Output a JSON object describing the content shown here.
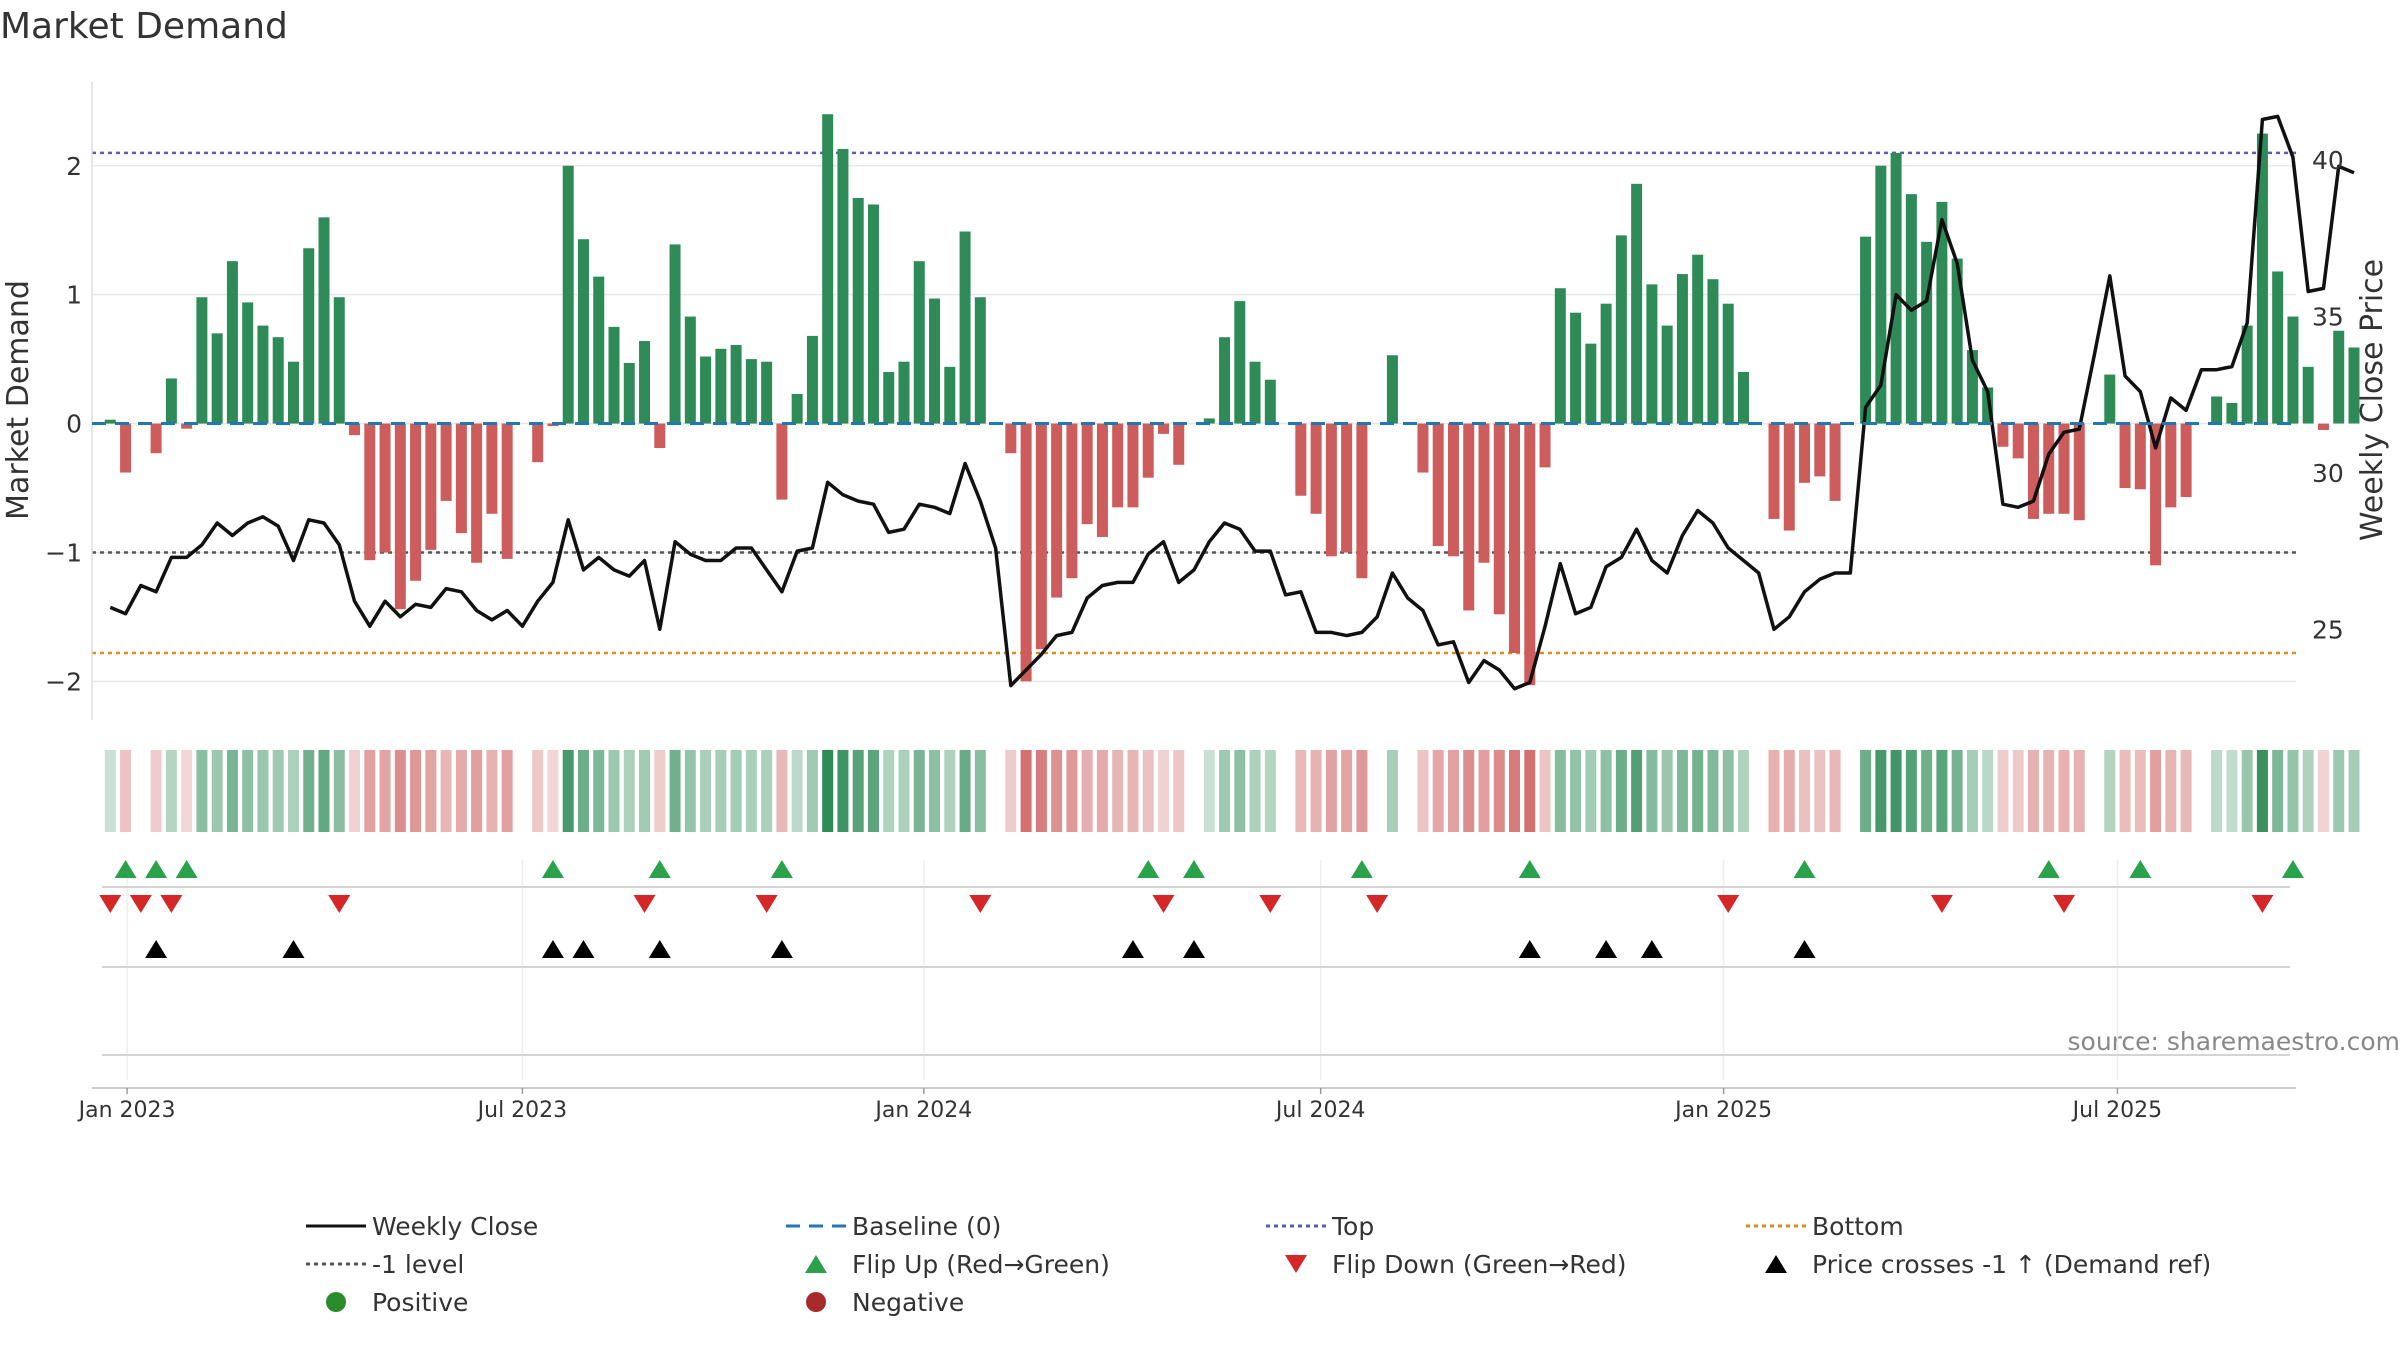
{
  "chart_data": {
    "type": "bar",
    "title": "Market Demand",
    "ylabel": "Market Demand",
    "y2label": "Weekly Close Price",
    "ylim": [
      -2.3,
      2.65
    ],
    "y_ticks": [
      -2,
      -1,
      0,
      1,
      2
    ],
    "y_tick_labels": [
      "−2",
      "−1",
      "0",
      "1",
      "2"
    ],
    "y2lim": [
      22.1,
      42.5
    ],
    "y2_ticks": [
      25,
      30,
      35,
      40
    ],
    "y2_tick_labels": [
      "25",
      "30",
      "35",
      "40"
    ],
    "x_range_weeks": [
      -1.2,
      143.2
    ],
    "x_ticks": [
      {
        "label": "Jan 2023",
        "week": 1.1
      },
      {
        "label": "Jul 2023",
        "week": 27
      },
      {
        "label": "Jan 2024",
        "week": 53.3
      },
      {
        "label": "Jul 2024",
        "week": 79.3
      },
      {
        "label": "Jan 2025",
        "week": 105.7
      },
      {
        "label": "Jul 2025",
        "week": 131.5
      }
    ],
    "reference_lines": {
      "top": 2.1,
      "bottom": -1.78,
      "minus_one": -1,
      "baseline": 0
    },
    "series": [
      {
        "name": "Market Demand",
        "values": [
          0.03,
          -0.38,
          0,
          -0.23,
          0.35,
          -0.04,
          0.98,
          0.7,
          1.26,
          0.94,
          0.76,
          0.67,
          0.48,
          1.36,
          1.6,
          0.98,
          -0.09,
          -1.06,
          -1.0,
          -1.44,
          -1.22,
          -0.98,
          -0.6,
          -0.85,
          -1.08,
          -0.7,
          -1.05,
          0,
          -0.3,
          -0.02,
          2.0,
          1.43,
          1.14,
          0.75,
          0.47,
          0.64,
          -0.19,
          1.39,
          0.83,
          0.52,
          0.58,
          0.61,
          0.5,
          0.48,
          -0.59,
          0.23,
          0.68,
          2.4,
          2.13,
          1.75,
          1.7,
          0.4,
          0.48,
          1.26,
          0.97,
          0.44,
          1.49,
          0.98,
          0.0,
          -0.23,
          -2.0,
          -1.75,
          -1.35,
          -1.2,
          -0.78,
          -0.88,
          -0.65,
          -0.65,
          -0.42,
          -0.08,
          -0.32,
          0,
          0.04,
          0.67,
          0.95,
          0.48,
          0.34,
          0,
          -0.56,
          -0.7,
          -1.03,
          -1.0,
          -1.2,
          0,
          0.53,
          0,
          -0.38,
          -0.95,
          -1.03,
          -1.45,
          -1.08,
          -1.48,
          -1.78,
          -2.03,
          -0.34,
          1.05,
          0.86,
          0.62,
          0.93,
          1.46,
          1.86,
          1.08,
          0.76,
          1.16,
          1.31,
          1.12,
          0.93,
          0.4,
          0,
          -0.74,
          -0.83,
          -0.46,
          -0.41,
          -0.6,
          0,
          1.45,
          2.0,
          2.1,
          1.78,
          1.41,
          1.72,
          1.28,
          0.57,
          0.28,
          -0.18,
          -0.27,
          -0.74,
          -0.7,
          -0.7,
          -0.75,
          0,
          0.38,
          -0.5,
          -0.51,
          -1.1,
          -0.65,
          -0.57,
          0,
          0.21,
          0.16,
          0.76,
          2.25,
          1.18,
          0.83,
          0.44,
          -0.05,
          0.72,
          0.59
        ]
      },
      {
        "name": "Weekly Close",
        "values": [
          25.7,
          25.5,
          26.4,
          26.2,
          27.3,
          27.3,
          27.7,
          28.4,
          28.0,
          28.4,
          28.6,
          28.3,
          27.2,
          28.5,
          28.4,
          27.7,
          25.9,
          25.1,
          25.9,
          25.4,
          25.8,
          25.7,
          26.3,
          26.2,
          25.6,
          25.3,
          25.6,
          25.1,
          25.9,
          26.5,
          28.5,
          26.9,
          27.3,
          26.9,
          26.7,
          27.2,
          25.0,
          27.8,
          27.4,
          27.2,
          27.2,
          27.6,
          27.6,
          26.9,
          26.2,
          27.5,
          27.6,
          29.7,
          29.3,
          29.1,
          29.0,
          28.1,
          28.2,
          29.0,
          28.9,
          28.7,
          30.3,
          29.1,
          27.6,
          23.2,
          23.7,
          24.2,
          24.8,
          24.9,
          26.0,
          26.4,
          26.5,
          26.5,
          27.4,
          27.8,
          26.5,
          26.9,
          27.8,
          28.4,
          28.2,
          27.5,
          27.5,
          26.1,
          26.2,
          24.9,
          24.9,
          24.8,
          24.9,
          25.4,
          26.8,
          26.0,
          25.6,
          24.5,
          24.6,
          23.3,
          24.0,
          23.7,
          23.1,
          23.3,
          25.1,
          27.1,
          25.5,
          25.7,
          27.0,
          27.3,
          28.2,
          27.2,
          26.8,
          28.0,
          28.8,
          28.4,
          27.6,
          27.2,
          26.8,
          25.0,
          25.4,
          26.2,
          26.6,
          26.8,
          26.8,
          32.1,
          32.8,
          35.7,
          35.2,
          35.5,
          38.1,
          36.7,
          33.6,
          32.6,
          29.0,
          28.9,
          29.1,
          30.6,
          31.3,
          31.4,
          33.8,
          36.3,
          33.1,
          32.6,
          30.8,
          32.4,
          32.0,
          33.3,
          33.3,
          33.4,
          34.8,
          41.3,
          41.4,
          40.1,
          35.8,
          35.9,
          39.8,
          39.6
        ]
      }
    ],
    "flip_up_weeks": [
      1,
      3,
      5,
      29,
      36,
      44,
      68,
      71,
      82,
      93,
      111,
      127,
      133,
      143
    ],
    "flip_down_weeks": [
      0,
      2,
      4,
      15,
      35,
      43,
      57,
      69,
      76,
      83,
      106,
      120,
      128,
      141
    ],
    "price_cross_weeks": [
      3,
      12,
      29,
      31,
      36,
      44,
      67,
      71,
      93,
      98,
      101,
      111
    ],
    "legend": [
      {
        "label": "Weekly Close",
        "symbol": "line-solid",
        "color": "#111111"
      },
      {
        "label": "Baseline (0)",
        "symbol": "line-dashed",
        "color": "#1f77b4"
      },
      {
        "label": "Top",
        "symbol": "line-dotted",
        "color": "#5b5bb8"
      },
      {
        "label": "Bottom",
        "symbol": "line-dotted",
        "color": "#d98c1c"
      },
      {
        "label": "-1 level",
        "symbol": "line-dotted",
        "color": "#555555"
      },
      {
        "label": "Flip Up (Red→Green)",
        "symbol": "triangle-up",
        "color": "#2aa14a"
      },
      {
        "label": "Flip Down (Green→Red)",
        "symbol": "triangle-down",
        "color": "#d62728"
      },
      {
        "label": "Price crosses -1 ↑ (Demand ref)",
        "symbol": "triangle-up",
        "color": "#000000"
      },
      {
        "label": "Positive",
        "symbol": "circle",
        "color": "#2a8c2a"
      },
      {
        "label": "Negative",
        "symbol": "circle",
        "color": "#a82a2a"
      }
    ],
    "source": "source: sharemaestro.com"
  },
  "colors": {
    "positive_bar": "#2e8b57",
    "negative_bar": "#cd5c5c",
    "price_line": "#111111",
    "baseline": "#1f77b4",
    "top_line": "#5b5bb8",
    "bottom_line": "#d98c1c",
    "minus_one_line": "#555555",
    "flip_up": "#2aa14a",
    "flip_down": "#d62728",
    "cross_marker": "#000000"
  }
}
